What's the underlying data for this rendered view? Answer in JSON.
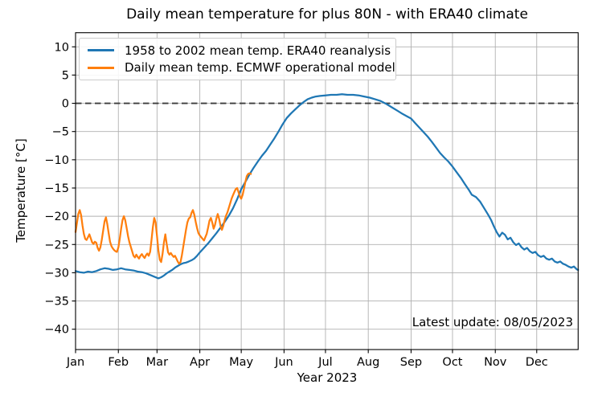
{
  "chart_data": {
    "type": "line",
    "title": "Daily mean temperature for plus 80N - with ERA40 climate",
    "xlabel": "Year 2023",
    "ylabel": "Temperature [°C]",
    "annotation": "Latest update: 08/05/2023",
    "x_tick_labels": [
      "Jan",
      "Feb",
      "Mar",
      "Apr",
      "May",
      "Jun",
      "Jul",
      "Aug",
      "Sep",
      "Oct",
      "Nov",
      "Dec"
    ],
    "x_tick_days": [
      1,
      32,
      60,
      91,
      121,
      152,
      182,
      213,
      244,
      274,
      305,
      335
    ],
    "xlim_days": [
      1,
      365
    ],
    "y_ticks": [
      10,
      5,
      0,
      -5,
      -10,
      -15,
      -20,
      -25,
      -30,
      -35,
      -40
    ],
    "y_tick_labels": [
      "10",
      "5",
      "0",
      "−5",
      "−10",
      "−15",
      "−20",
      "−25",
      "−30",
      "−35",
      "−40"
    ],
    "ylim": [
      -43.6,
      12.5
    ],
    "grid": true,
    "grid_color": "#b0b0b0",
    "axis_color": "#000000",
    "zero_line": {
      "value": 0,
      "style": "dashed",
      "color": "#3c3c3c"
    },
    "legend_position": "upper left",
    "series": [
      {
        "name": "1958 to 2002 mean temp. ERA40 reanalysis",
        "color": "#1f77b4",
        "points": [
          [
            1,
            -29.7
          ],
          [
            4,
            -29.9
          ],
          [
            7,
            -30.0
          ],
          [
            10,
            -29.8
          ],
          [
            13,
            -29.9
          ],
          [
            16,
            -29.7
          ],
          [
            19,
            -29.4
          ],
          [
            22,
            -29.2
          ],
          [
            25,
            -29.3
          ],
          [
            28,
            -29.5
          ],
          [
            31,
            -29.4
          ],
          [
            34,
            -29.2
          ],
          [
            37,
            -29.4
          ],
          [
            40,
            -29.5
          ],
          [
            43,
            -29.6
          ],
          [
            46,
            -29.8
          ],
          [
            49,
            -29.9
          ],
          [
            52,
            -30.1
          ],
          [
            55,
            -30.4
          ],
          [
            58,
            -30.7
          ],
          [
            61,
            -31.0
          ],
          [
            63,
            -30.8
          ],
          [
            65,
            -30.5
          ],
          [
            67,
            -30.1
          ],
          [
            69,
            -29.8
          ],
          [
            71,
            -29.5
          ],
          [
            73,
            -29.1
          ],
          [
            75,
            -28.8
          ],
          [
            77,
            -28.5
          ],
          [
            79,
            -28.3
          ],
          [
            81,
            -28.2
          ],
          [
            83,
            -28.0
          ],
          [
            85,
            -27.8
          ],
          [
            87,
            -27.5
          ],
          [
            89,
            -27.0
          ],
          [
            91,
            -26.4
          ],
          [
            94,
            -25.6
          ],
          [
            97,
            -24.8
          ],
          [
            100,
            -23.9
          ],
          [
            103,
            -23.0
          ],
          [
            106,
            -22.0
          ],
          [
            109,
            -21.0
          ],
          [
            112,
            -19.9
          ],
          [
            115,
            -18.6
          ],
          [
            118,
            -17.0
          ],
          [
            121,
            -15.2
          ],
          [
            124,
            -13.9
          ],
          [
            127,
            -12.6
          ],
          [
            130,
            -11.4
          ],
          [
            133,
            -10.3
          ],
          [
            136,
            -9.3
          ],
          [
            139,
            -8.4
          ],
          [
            142,
            -7.3
          ],
          [
            145,
            -6.2
          ],
          [
            148,
            -5.0
          ],
          [
            151,
            -3.7
          ],
          [
            154,
            -2.6
          ],
          [
            157,
            -1.8
          ],
          [
            160,
            -1.1
          ],
          [
            163,
            -0.4
          ],
          [
            166,
            0.2
          ],
          [
            169,
            0.7
          ],
          [
            172,
            1.0
          ],
          [
            175,
            1.2
          ],
          [
            178,
            1.3
          ],
          [
            182,
            1.4
          ],
          [
            186,
            1.5
          ],
          [
            190,
            1.5
          ],
          [
            194,
            1.6
          ],
          [
            198,
            1.5
          ],
          [
            202,
            1.5
          ],
          [
            206,
            1.4
          ],
          [
            210,
            1.2
          ],
          [
            214,
            1.0
          ],
          [
            218,
            0.7
          ],
          [
            222,
            0.4
          ],
          [
            226,
            -0.1
          ],
          [
            230,
            -0.7
          ],
          [
            234,
            -1.3
          ],
          [
            238,
            -1.9
          ],
          [
            241,
            -2.3
          ],
          [
            244,
            -2.7
          ],
          [
            247,
            -3.5
          ],
          [
            250,
            -4.3
          ],
          [
            253,
            -5.1
          ],
          [
            256,
            -5.9
          ],
          [
            259,
            -6.8
          ],
          [
            262,
            -7.8
          ],
          [
            265,
            -8.8
          ],
          [
            268,
            -9.6
          ],
          [
            271,
            -10.3
          ],
          [
            274,
            -11.2
          ],
          [
            277,
            -12.2
          ],
          [
            280,
            -13.2
          ],
          [
            283,
            -14.3
          ],
          [
            286,
            -15.4
          ],
          [
            288,
            -16.2
          ],
          [
            291,
            -16.6
          ],
          [
            294,
            -17.4
          ],
          [
            297,
            -18.6
          ],
          [
            300,
            -19.8
          ],
          [
            302,
            -20.7
          ],
          [
            304,
            -21.8
          ],
          [
            306,
            -22.8
          ],
          [
            308,
            -23.6
          ],
          [
            310,
            -22.9
          ],
          [
            312,
            -23.3
          ],
          [
            314,
            -24.1
          ],
          [
            316,
            -23.8
          ],
          [
            318,
            -24.6
          ],
          [
            320,
            -25.1
          ],
          [
            322,
            -24.8
          ],
          [
            324,
            -25.5
          ],
          [
            326,
            -25.9
          ],
          [
            328,
            -25.6
          ],
          [
            330,
            -26.2
          ],
          [
            332,
            -26.5
          ],
          [
            334,
            -26.3
          ],
          [
            336,
            -26.9
          ],
          [
            338,
            -27.2
          ],
          [
            340,
            -27.0
          ],
          [
            342,
            -27.5
          ],
          [
            344,
            -27.7
          ],
          [
            346,
            -27.5
          ],
          [
            348,
            -28.0
          ],
          [
            350,
            -28.2
          ],
          [
            352,
            -28.0
          ],
          [
            354,
            -28.4
          ],
          [
            356,
            -28.6
          ],
          [
            358,
            -28.9
          ],
          [
            360,
            -29.1
          ],
          [
            362,
            -28.9
          ],
          [
            364,
            -29.4
          ],
          [
            365,
            -29.5
          ]
        ]
      },
      {
        "name": "Daily mean temp. ECMWF operational model",
        "color": "#ff7f0e",
        "start_day": 1,
        "daily_values": [
          -22.8,
          -21.2,
          -19.6,
          -18.9,
          -19.8,
          -21.6,
          -23.1,
          -24.0,
          -24.2,
          -23.7,
          -23.2,
          -23.9,
          -24.6,
          -24.9,
          -24.5,
          -24.7,
          -25.6,
          -26.1,
          -25.5,
          -24.2,
          -22.5,
          -20.9,
          -20.2,
          -21.4,
          -23.0,
          -24.5,
          -25.3,
          -25.7,
          -26.0,
          -26.2,
          -26.3,
          -25.5,
          -24.0,
          -22.2,
          -20.7,
          -20.0,
          -20.7,
          -22.1,
          -23.5,
          -24.6,
          -25.4,
          -26.2,
          -27.0,
          -27.3,
          -26.8,
          -27.2,
          -27.5,
          -27.0,
          -26.7,
          -27.1,
          -27.4,
          -26.9,
          -26.6,
          -27.0,
          -26.3,
          -24.2,
          -21.9,
          -20.3,
          -21.1,
          -23.6,
          -26.1,
          -27.7,
          -28.1,
          -26.7,
          -24.7,
          -23.2,
          -24.9,
          -26.4,
          -26.8,
          -26.5,
          -26.9,
          -27.2,
          -27.0,
          -27.5,
          -28.0,
          -28.4,
          -28.1,
          -26.9,
          -25.4,
          -23.9,
          -22.4,
          -21.1,
          -20.4,
          -20.2,
          -19.4,
          -18.9,
          -19.7,
          -21.0,
          -22.1,
          -23.0,
          -23.4,
          -23.7,
          -24.0,
          -24.3,
          -23.7,
          -23.1,
          -22.0,
          -20.8,
          -20.3,
          -21.1,
          -22.2,
          -21.5,
          -20.4,
          -19.6,
          -20.5,
          -21.7,
          -22.4,
          -21.7,
          -20.7,
          -19.9,
          -19.3,
          -18.5,
          -17.7,
          -16.9,
          -16.3,
          -15.7,
          -15.2,
          -15.0,
          -15.7,
          -16.5,
          -16.9,
          -16.2,
          -15.1,
          -13.9,
          -12.9,
          -12.5,
          -12.4,
          -12.5
        ]
      }
    ]
  }
}
